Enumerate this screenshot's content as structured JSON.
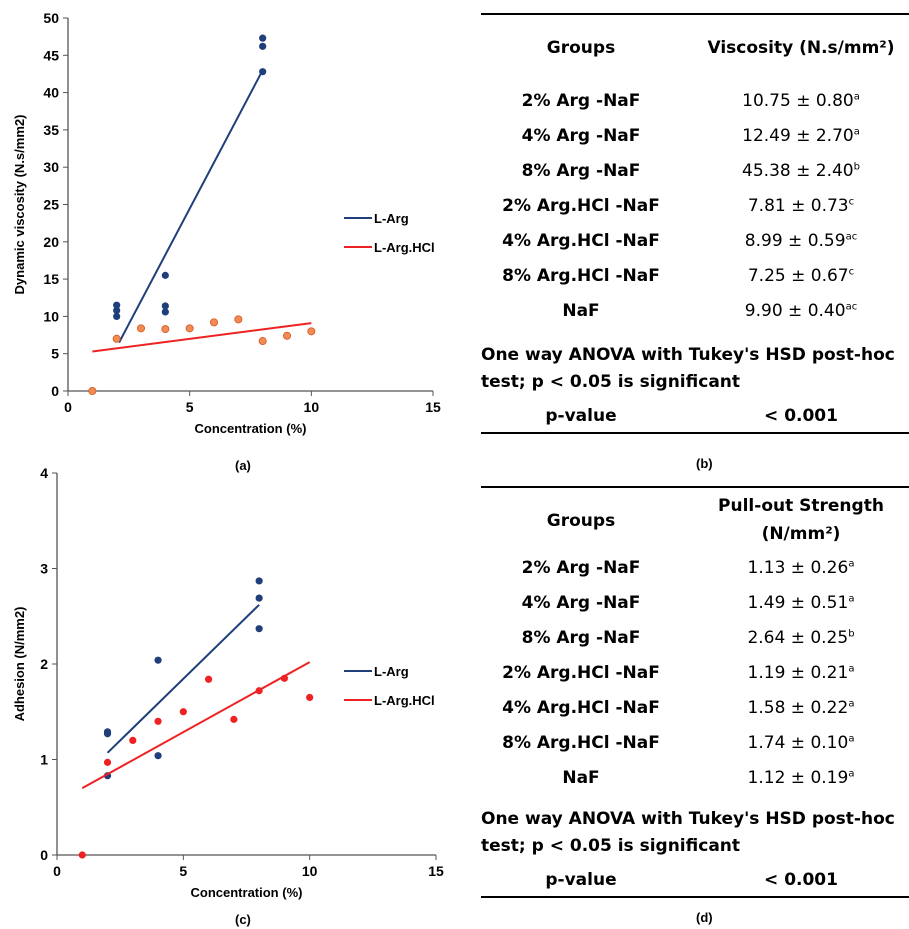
{
  "panel_a": {
    "label": "(a)",
    "xlabel": "Concentration (%)",
    "ylabel": "Dynamic viscosity (N.s/mm2)",
    "xticks": [
      "0",
      "5",
      "10",
      "15"
    ],
    "yticks": [
      "0",
      "5",
      "10",
      "15",
      "20",
      "25",
      "30",
      "35",
      "40",
      "45",
      "50"
    ]
  },
  "panel_b": {
    "label": "(b)",
    "col1": "Groups",
    "col2": "Viscosity (N.s/mm²)",
    "rows": [
      {
        "group": "2% Arg -NaF",
        "value": "10.75 ± 0.80",
        "sup": "a"
      },
      {
        "group": "4% Arg -NaF",
        "value": "12.49 ± 2.70",
        "sup": "a"
      },
      {
        "group": "8% Arg -NaF",
        "value": "45.38 ± 2.40",
        "sup": "b"
      },
      {
        "group": "2% Arg.HCl -NaF",
        "value": "7.81 ± 0.73",
        "sup": "c"
      },
      {
        "group": "4% Arg.HCl -NaF",
        "value": "8.99 ± 0.59",
        "sup": "ac"
      },
      {
        "group": "8% Arg.HCl -NaF",
        "value": "7.25 ± 0.67",
        "sup": "c"
      },
      {
        "group": "NaF",
        "value": "9.90 ± 0.40",
        "sup": "ac"
      }
    ],
    "note_line1": "One way ANOVA with Tukey's HSD post-hoc",
    "note_line2": "test; p < 0.05 is significant",
    "pvalue_label": "p-value",
    "pvalue": "< 0.001"
  },
  "panel_c": {
    "label": "(c)",
    "xlabel": "Concentration (%)",
    "ylabel": "Adhesion (N/mm2)",
    "xticks": [
      "0",
      "5",
      "10",
      "15"
    ],
    "yticks": [
      "0",
      "1",
      "2",
      "3",
      "4"
    ]
  },
  "panel_d": {
    "label": "(d)",
    "col1": "Groups",
    "col2_line1": "Pull-out Strength",
    "col2_line2": "(N/mm²)",
    "rows": [
      {
        "group": "2% Arg -NaF",
        "value": "1.13 ± 0.26",
        "sup": "a"
      },
      {
        "group": "4% Arg -NaF",
        "value": "1.49 ± 0.51",
        "sup": "a"
      },
      {
        "group": "8% Arg -NaF",
        "value": "2.64 ± 0.25",
        "sup": "b"
      },
      {
        "group": "2% Arg.HCl -NaF",
        "value": "1.19 ± 0.21",
        "sup": "a"
      },
      {
        "group": "4% Arg.HCl -NaF",
        "value": "1.58 ± 0.22",
        "sup": "a"
      },
      {
        "group": "8% Arg.HCl -NaF",
        "value": "1.74 ± 0.10",
        "sup": "a"
      },
      {
        "group": "NaF",
        "value": "1.12 ± 0.19",
        "sup": "a"
      }
    ],
    "note_line1": "One way ANOVA with Tukey's HSD post-hoc",
    "note_line2": "test; p < 0.05 is significant",
    "pvalue_label": "p-value",
    "pvalue": "< 0.001"
  },
  "legend": {
    "arg": "L-Arg",
    "hcl": "L-Arg.HCl"
  },
  "colors": {
    "arg": "#1f3f7a",
    "hcl_line": "#ee2222",
    "hcl_point_a": "#f28a55",
    "hcl_point_c": "#ee2222"
  },
  "chart_data": [
    {
      "type": "scatter",
      "xlabel": "Concentration (%)",
      "ylabel": "Dynamic viscosity (N.s/mm2)",
      "xlim": [
        0,
        15
      ],
      "ylim": [
        0,
        50
      ],
      "grid": false,
      "legend_position": "right",
      "series": [
        {
          "name": "L-Arg",
          "points": [
            [
              2,
              10
            ],
            [
              2,
              10.8
            ],
            [
              2,
              11.5
            ],
            [
              4,
              10.6
            ],
            [
              4,
              11.4
            ],
            [
              4,
              15.5
            ],
            [
              8,
              42.8
            ],
            [
              8,
              46.2
            ],
            [
              8,
              47.3
            ]
          ],
          "trend": [
            [
              2.1,
              6.5
            ],
            [
              8,
              43
            ]
          ]
        },
        {
          "name": "L-Arg.HCl",
          "points": [
            [
              1,
              0
            ],
            [
              2,
              7
            ],
            [
              3,
              8.4
            ],
            [
              4,
              8.3
            ],
            [
              5,
              8.4
            ],
            [
              6,
              9.2
            ],
            [
              7,
              9.6
            ],
            [
              8,
              6.7
            ],
            [
              9,
              7.4
            ],
            [
              10,
              8
            ]
          ],
          "trend": [
            [
              1,
              5.3
            ],
            [
              10,
              9.1
            ]
          ]
        }
      ]
    },
    {
      "type": "scatter",
      "xlabel": "Concentration (%)",
      "ylabel": "Adhesion (N/mm2)",
      "xlim": [
        0,
        15
      ],
      "ylim": [
        0,
        4
      ],
      "grid": false,
      "legend_position": "right",
      "series": [
        {
          "name": "L-Arg",
          "points": [
            [
              2,
              0.83
            ],
            [
              2,
              1.27
            ],
            [
              2,
              1.29
            ],
            [
              4,
              1.04
            ],
            [
              4,
              2.04
            ],
            [
              8,
              2.37
            ],
            [
              8,
              2.69
            ],
            [
              8,
              2.87
            ]
          ],
          "trend": [
            [
              2,
              1.07
            ],
            [
              8,
              2.62
            ]
          ]
        },
        {
          "name": "L-Arg.HCl",
          "points": [
            [
              1,
              0
            ],
            [
              2,
              0.97
            ],
            [
              3,
              1.2
            ],
            [
              4,
              1.4
            ],
            [
              5,
              1.5
            ],
            [
              6,
              1.84
            ],
            [
              7,
              1.42
            ],
            [
              8,
              1.72
            ],
            [
              9,
              1.85
            ],
            [
              10,
              1.65
            ]
          ],
          "trend": [
            [
              1,
              0.7
            ],
            [
              10,
              2.02
            ]
          ]
        }
      ]
    }
  ]
}
